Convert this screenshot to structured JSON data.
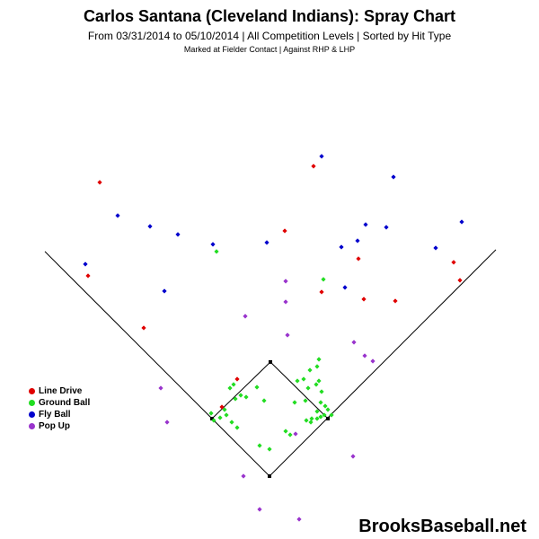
{
  "header": {
    "title": "Carlos Santana (Cleveland Indians): Spray Chart",
    "subtitle": "From 03/31/2014 to 05/10/2014 | All Competition Levels | Sorted by Hit Type",
    "subsubtitle": "Marked at Fielder Contact |   Against RHP & LHP"
  },
  "brand": "BrooksBaseball.net",
  "legend": [
    {
      "label": "Line Drive",
      "color": "#e00000"
    },
    {
      "label": "Ground Ball",
      "color": "#22dd22"
    },
    {
      "label": "Fly Ball",
      "color": "#0000cc"
    },
    {
      "label": "Pop Up",
      "color": "#9933cc"
    }
  ],
  "chart_data": {
    "type": "scatter",
    "title": "Carlos Santana (Cleveland Indians): Spray Chart",
    "xlabel": "",
    "ylabel": "",
    "grid": false,
    "legend_position": "left",
    "series": [
      {
        "name": "Line Drive",
        "color": "#e00000",
        "points": [
          [
            111,
            203
          ],
          [
            349,
            185
          ],
          [
            317,
            257
          ],
          [
            98,
            307
          ],
          [
            399,
            288
          ],
          [
            358,
            325
          ],
          [
            405,
            333
          ],
          [
            440,
            335
          ],
          [
            505,
            292
          ],
          [
            512,
            312
          ],
          [
            160,
            365
          ],
          [
            264,
            422
          ],
          [
            247,
            453
          ]
        ]
      },
      {
        "name": "Ground Ball",
        "color": "#22dd22",
        "points": [
          [
            241,
            280
          ],
          [
            360,
            311
          ],
          [
            355,
            400
          ],
          [
            353,
            408
          ],
          [
            345,
            412
          ],
          [
            338,
            422
          ],
          [
            331,
            424
          ],
          [
            355,
            424
          ],
          [
            352,
            428
          ],
          [
            343,
            432
          ],
          [
            358,
            436
          ],
          [
            286,
            431
          ],
          [
            268,
            440
          ],
          [
            274,
            442
          ],
          [
            260,
            428
          ],
          [
            256,
            432
          ],
          [
            262,
            444
          ],
          [
            294,
            446
          ],
          [
            340,
            446
          ],
          [
            357,
            448
          ],
          [
            362,
            452
          ],
          [
            365,
            456
          ],
          [
            353,
            458
          ],
          [
            369,
            462
          ],
          [
            361,
            462
          ],
          [
            357,
            464
          ],
          [
            353,
            466
          ],
          [
            347,
            466
          ],
          [
            341,
            468
          ],
          [
            346,
            470
          ],
          [
            235,
            460
          ],
          [
            250,
            456
          ],
          [
            252,
            462
          ],
          [
            245,
            465
          ],
          [
            258,
            470
          ],
          [
            238,
            468
          ],
          [
            264,
            476
          ],
          [
            318,
            480
          ],
          [
            323,
            484
          ],
          [
            289,
            496
          ],
          [
            300,
            500
          ],
          [
            328,
            448
          ]
        ]
      },
      {
        "name": "Fly Ball",
        "color": "#0000cc",
        "points": [
          [
            358,
            174
          ],
          [
            438,
            197
          ],
          [
            131,
            240
          ],
          [
            167,
            252
          ],
          [
            198,
            261
          ],
          [
            237,
            272
          ],
          [
            297,
            270
          ],
          [
            380,
            275
          ],
          [
            398,
            268
          ],
          [
            407,
            250
          ],
          [
            430,
            253
          ],
          [
            485,
            276
          ],
          [
            514,
            247
          ],
          [
            95,
            294
          ],
          [
            183,
            324
          ],
          [
            384,
            320
          ]
        ]
      },
      {
        "name": "Pop Up",
        "color": "#9933cc",
        "points": [
          [
            318,
            313
          ],
          [
            318,
            336
          ],
          [
            273,
            352
          ],
          [
            320,
            373
          ],
          [
            394,
            381
          ],
          [
            406,
            396
          ],
          [
            415,
            402
          ],
          [
            179,
            432
          ],
          [
            186,
            470
          ],
          [
            329,
            483
          ],
          [
            393,
            508
          ],
          [
            271,
            530
          ],
          [
            289,
            567
          ],
          [
            333,
            578
          ]
        ]
      }
    ]
  }
}
